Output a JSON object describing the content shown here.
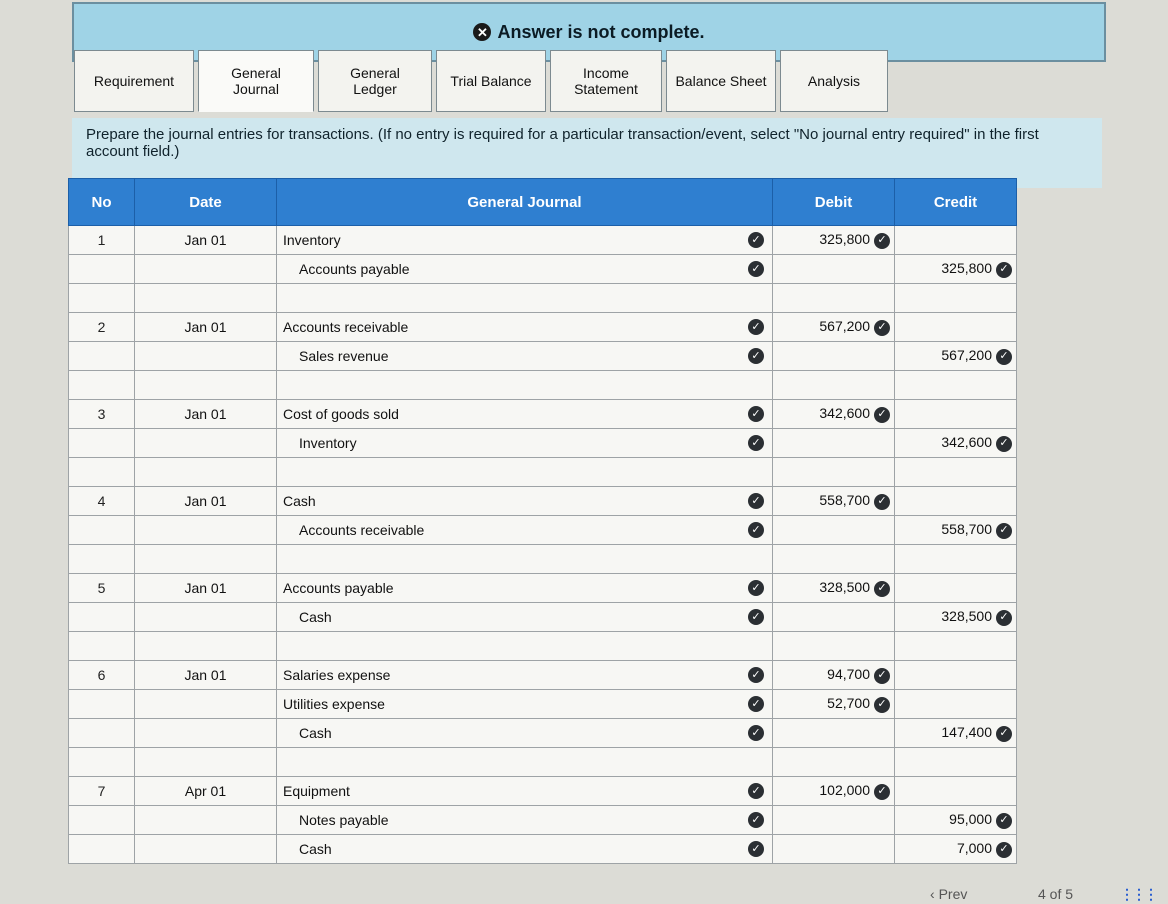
{
  "banner": {
    "text": "Answer is not complete."
  },
  "tabs": [
    {
      "label": "Requirement"
    },
    {
      "label": "General\nJournal"
    },
    {
      "label": "General\nLedger"
    },
    {
      "label": "Trial Balance"
    },
    {
      "label": "Income\nStatement"
    },
    {
      "label": "Balance Sheet"
    },
    {
      "label": "Analysis"
    }
  ],
  "instructions": "Prepare the journal entries for transactions. (If no entry is required for a particular transaction/event, select \"No journal entry required\" in the first account field.)",
  "table": {
    "headers": {
      "no": "No",
      "date": "Date",
      "journal": "General Journal",
      "debit": "Debit",
      "credit": "Credit"
    },
    "rows": [
      {
        "no": "1",
        "date": "Jan 01",
        "account": "Inventory",
        "debit": "325,800",
        "credit": ""
      },
      {
        "no": "",
        "date": "",
        "account": "Accounts payable",
        "debit": "",
        "credit": "325,800"
      },
      {
        "no": "",
        "date": "",
        "account": "",
        "debit": "",
        "credit": ""
      },
      {
        "no": "2",
        "date": "Jan 01",
        "account": "Accounts receivable",
        "debit": "567,200",
        "credit": ""
      },
      {
        "no": "",
        "date": "",
        "account": "Sales revenue",
        "debit": "",
        "credit": "567,200"
      },
      {
        "no": "",
        "date": "",
        "account": "",
        "debit": "",
        "credit": ""
      },
      {
        "no": "3",
        "date": "Jan 01",
        "account": "Cost of goods sold",
        "debit": "342,600",
        "credit": ""
      },
      {
        "no": "",
        "date": "",
        "account": "Inventory",
        "debit": "",
        "credit": "342,600"
      },
      {
        "no": "",
        "date": "",
        "account": "",
        "debit": "",
        "credit": ""
      },
      {
        "no": "4",
        "date": "Jan 01",
        "account": "Cash",
        "debit": "558,700",
        "credit": ""
      },
      {
        "no": "",
        "date": "",
        "account": "Accounts receivable",
        "debit": "",
        "credit": "558,700"
      },
      {
        "no": "",
        "date": "",
        "account": "",
        "debit": "",
        "credit": ""
      },
      {
        "no": "5",
        "date": "Jan 01",
        "account": "Accounts payable",
        "debit": "328,500",
        "credit": ""
      },
      {
        "no": "",
        "date": "",
        "account": "Cash",
        "debit": "",
        "credit": "328,500"
      },
      {
        "no": "",
        "date": "",
        "account": "",
        "debit": "",
        "credit": ""
      },
      {
        "no": "6",
        "date": "Jan 01",
        "account": "Salaries expense",
        "debit": "94,700",
        "credit": ""
      },
      {
        "no": "",
        "date": "",
        "account": "Utilities expense",
        "debit": "52,700",
        "credit": ""
      },
      {
        "no": "",
        "date": "",
        "account": "Cash",
        "debit": "",
        "credit": "147,400"
      },
      {
        "no": "",
        "date": "",
        "account": "",
        "debit": "",
        "credit": ""
      },
      {
        "no": "7",
        "date": "Apr 01",
        "account": "Equipment",
        "debit": "102,000",
        "credit": ""
      },
      {
        "no": "",
        "date": "",
        "account": "Notes payable",
        "debit": "",
        "credit": "95,000"
      },
      {
        "no": "",
        "date": "",
        "account": "Cash",
        "debit": "",
        "credit": "7,000"
      }
    ]
  },
  "footer": {
    "prev": "Prev",
    "pager": "4 of 5"
  },
  "colors": {
    "header": "#2f7fd0",
    "banner": "#9fd3e6",
    "instructions": "#cfe7ee"
  },
  "icons": {
    "banner": "x-circle-icon",
    "status": "check-circle-icon",
    "grid": "grid-icon"
  }
}
